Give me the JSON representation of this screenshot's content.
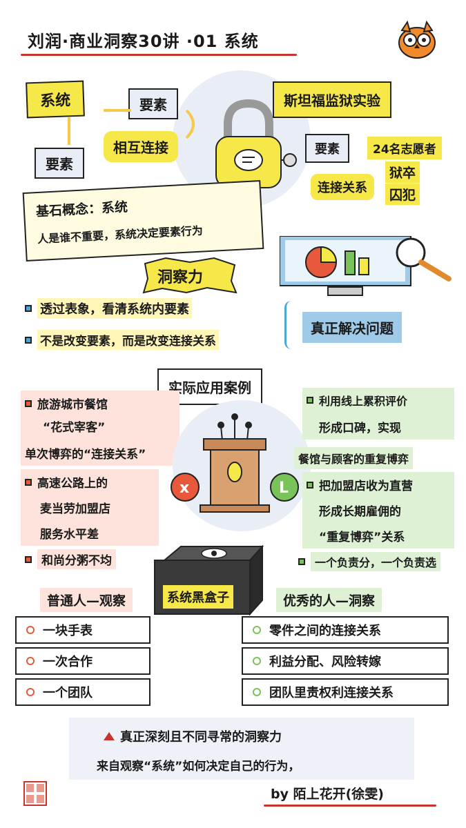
{
  "title": "刘润·商业洞察30讲 ·01 系统",
  "mascot": {
    "icon": "owl-mascot-icon"
  },
  "top_left": {
    "system": "系统",
    "element1": "要素",
    "element2": "要素",
    "connection": "相互连接",
    "basic_concept_line1": "基石概念：系统",
    "basic_concept_line2": "人是谁不重要，系统决定要素行为"
  },
  "stanford": {
    "title": "斯坦福监狱实验",
    "element_label": "要素",
    "element_value": "24名志愿者",
    "connection_label": "连接关系",
    "connection_value1": "狱卒",
    "connection_value2": "囚犯"
  },
  "insight": {
    "label": "洞察力",
    "item1": "透过表象，看清系统内要素",
    "item2": "不是改变要素，而是改变连接关系",
    "solve": "真正解决问题"
  },
  "cases": {
    "label": "实际应用案例",
    "left": [
      {
        "lines": [
          "旅游城市餐馆",
          "“花式宰客”",
          "单次博弈的“连接关系”"
        ]
      },
      {
        "lines": [
          "高速公路上的",
          "麦当劳加盟店",
          "服务水平差"
        ]
      },
      {
        "lines": [
          "和尚分粥不均"
        ]
      }
    ],
    "right": [
      {
        "lines": [
          "利用线上累积评价",
          "形成口碑，实现",
          "餐馆与顾客的重复博弈"
        ]
      },
      {
        "lines": [
          "把加盟店收为直营",
          "形成长期雇佣的",
          "“重复博弈”关系"
        ]
      },
      {
        "lines": [
          "一个负责分，一个负责选"
        ]
      }
    ]
  },
  "blackbox": {
    "label": "系统黑盒子",
    "ordinary_title": "普通人—观察",
    "ordinary_items": [
      "一块手表",
      "一次合作",
      "一个团队"
    ],
    "excellent_title": "优秀的人—洞察",
    "excellent_items": [
      "零件之间的连接关系",
      "利益分配、风险转嫁",
      "团队里责权利连接关系"
    ]
  },
  "footer": {
    "line1": "真正深刻且不同寻常的洞察力",
    "line2": "来自观察“系统”如何决定自己的行为，",
    "byline": "by 陌上花开(徐雯)",
    "seal_icon": "seal-stamp-icon"
  },
  "colors": {
    "yellow": "#f7e84a",
    "blue": "#4aa6d6",
    "red": "#e8593c",
    "green": "#79c35a",
    "line_red": "#c8342c"
  }
}
